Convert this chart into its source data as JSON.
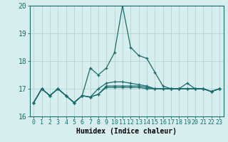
{
  "xlabel": "Humidex (Indice chaleur)",
  "xlim": [
    -0.5,
    23.5
  ],
  "ylim": [
    16,
    20
  ],
  "yticks": [
    16,
    17,
    18,
    19,
    20
  ],
  "xticks": [
    0,
    1,
    2,
    3,
    4,
    5,
    6,
    7,
    8,
    9,
    10,
    11,
    12,
    13,
    14,
    15,
    16,
    17,
    18,
    19,
    20,
    21,
    22,
    23
  ],
  "background_color": "#d7eeee",
  "grid_color": "#b8d8d8",
  "line_color": "#1a6b6b",
  "series": [
    [
      16.5,
      17.0,
      16.75,
      17.0,
      16.75,
      16.5,
      16.75,
      17.75,
      17.5,
      17.75,
      18.3,
      20.0,
      18.5,
      18.2,
      18.1,
      17.6,
      17.1,
      17.0,
      17.0,
      17.2,
      17.0,
      17.0,
      16.9,
      17.0
    ],
    [
      16.5,
      17.0,
      16.75,
      17.0,
      16.75,
      16.5,
      16.75,
      16.7,
      16.8,
      17.05,
      17.05,
      17.05,
      17.05,
      17.05,
      17.0,
      17.0,
      17.0,
      17.0,
      17.0,
      17.0,
      17.0,
      17.0,
      16.9,
      17.0
    ],
    [
      16.5,
      17.0,
      16.75,
      17.0,
      16.75,
      16.5,
      16.75,
      16.7,
      16.8,
      17.1,
      17.1,
      17.1,
      17.1,
      17.1,
      17.05,
      17.0,
      17.0,
      17.0,
      17.0,
      17.0,
      17.0,
      17.0,
      16.9,
      17.0
    ],
    [
      16.5,
      17.0,
      16.75,
      17.0,
      16.75,
      16.5,
      16.75,
      16.7,
      17.0,
      17.2,
      17.25,
      17.25,
      17.2,
      17.15,
      17.1,
      17.0,
      17.0,
      17.0,
      17.0,
      17.0,
      17.0,
      17.0,
      16.9,
      17.0
    ]
  ],
  "x": [
    0,
    1,
    2,
    3,
    4,
    5,
    6,
    7,
    8,
    9,
    10,
    11,
    12,
    13,
    14,
    15,
    16,
    17,
    18,
    19,
    20,
    21,
    22,
    23
  ],
  "tick_fontsize": 6,
  "xlabel_fontsize": 7
}
